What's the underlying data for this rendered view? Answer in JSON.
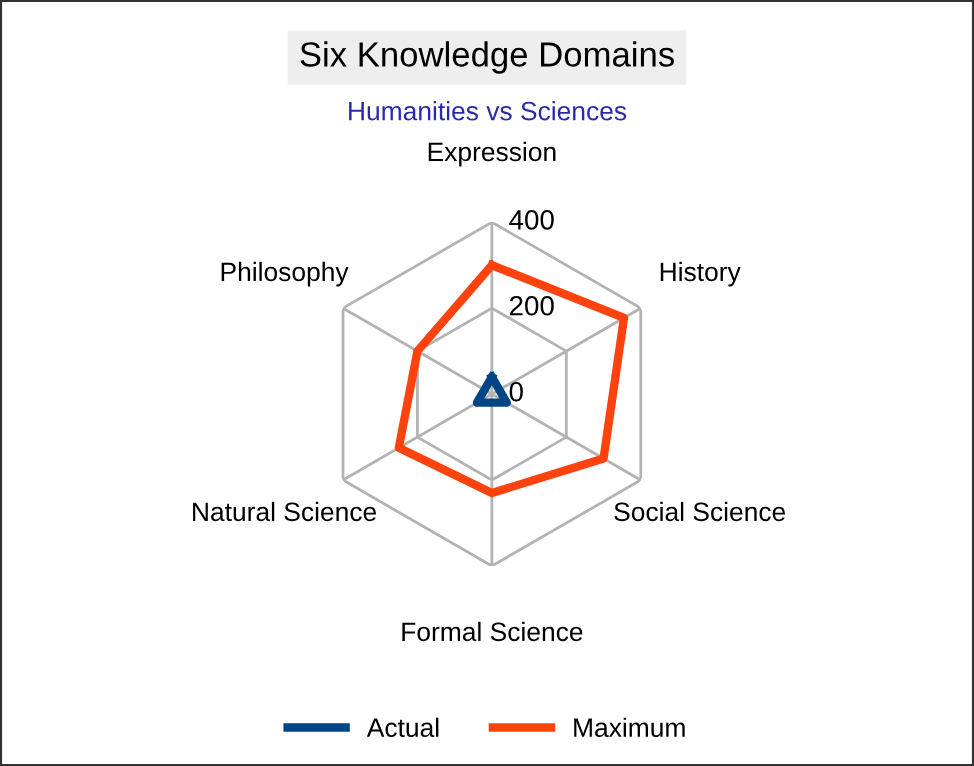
{
  "chart_data": {
    "type": "radar",
    "title": "Six Knowledge Domains",
    "subtitle": "Humanities vs Sciences",
    "categories": [
      "Expression",
      "History",
      "Social Science",
      "Formal Science",
      "Natural Science",
      "Philosophy"
    ],
    "series": [
      {
        "name": "Actual",
        "color": "#004586",
        "values": [
          40,
          20,
          40,
          20,
          40,
          20
        ]
      },
      {
        "name": "Maximum",
        "color": "#ff420e",
        "values": [
          300,
          355,
          300,
          230,
          250,
          200
        ]
      }
    ],
    "ylim": [
      0,
      400
    ],
    "yticks": [
      0,
      200,
      400
    ],
    "grid": true,
    "legend": "bottom",
    "marker": "none",
    "line_style": "solid"
  }
}
